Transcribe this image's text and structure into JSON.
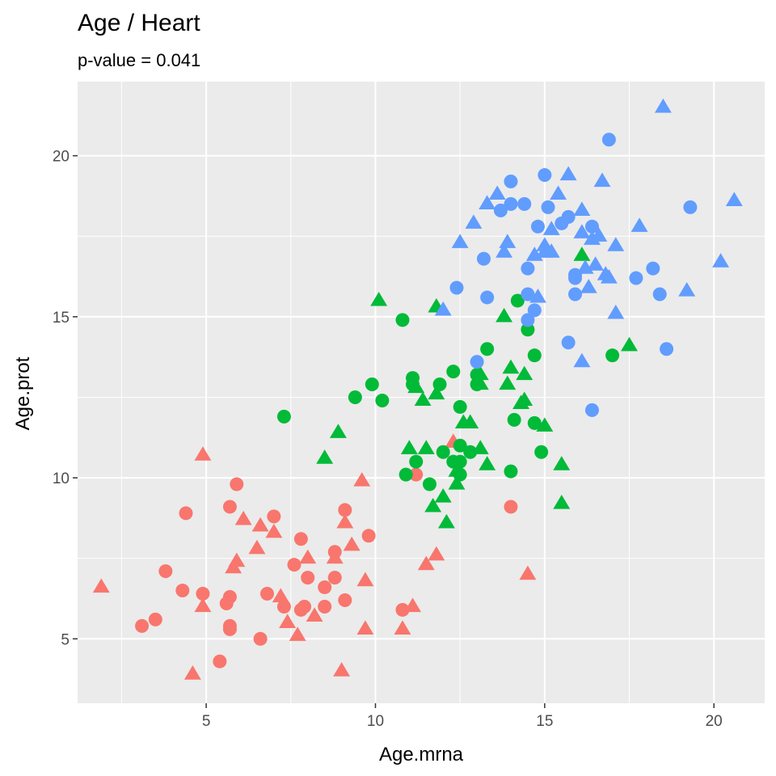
{
  "chart_data": {
    "type": "scatter",
    "title": "Age / Heart",
    "subtitle": "p-value = 0.041",
    "xlabel": "Age.mrna",
    "ylabel": "Age.prot",
    "xlim": [
      1.2,
      21.5
    ],
    "ylim": [
      3.0,
      22.3
    ],
    "x_ticks": [
      5,
      10,
      15,
      20
    ],
    "y_ticks": [
      5,
      10,
      15,
      20
    ],
    "grid": true,
    "legend": "none",
    "colors": {
      "red": "#F8766D",
      "green": "#00BA38",
      "blue": "#619CFF",
      "panel": "#EBEBEB",
      "grid": "#FFFFFF"
    },
    "series": [
      {
        "color": "red",
        "points": [
          [
            1.9,
            6.6,
            "triangle"
          ],
          [
            3.1,
            5.4,
            "circle"
          ],
          [
            3.5,
            5.6,
            "circle"
          ],
          [
            3.8,
            7.1,
            "circle"
          ],
          [
            4.3,
            6.5,
            "circle"
          ],
          [
            4.4,
            8.9,
            "circle"
          ],
          [
            4.6,
            3.9,
            "triangle"
          ],
          [
            4.9,
            10.7,
            "triangle"
          ],
          [
            4.9,
            6.4,
            "circle"
          ],
          [
            4.9,
            6.0,
            "triangle"
          ],
          [
            5.4,
            4.3,
            "circle"
          ],
          [
            5.6,
            6.1,
            "circle"
          ],
          [
            5.7,
            6.3,
            "circle"
          ],
          [
            5.7,
            5.4,
            "circle"
          ],
          [
            5.7,
            5.3,
            "circle"
          ],
          [
            5.7,
            9.1,
            "circle"
          ],
          [
            5.8,
            7.2,
            "triangle"
          ],
          [
            5.9,
            9.8,
            "circle"
          ],
          [
            5.9,
            7.4,
            "triangle"
          ],
          [
            6.1,
            8.7,
            "triangle"
          ],
          [
            6.5,
            7.8,
            "triangle"
          ],
          [
            6.6,
            5.0,
            "circle"
          ],
          [
            6.6,
            8.5,
            "triangle"
          ],
          [
            6.8,
            6.4,
            "circle"
          ],
          [
            7.0,
            8.3,
            "triangle"
          ],
          [
            7.0,
            8.8,
            "circle"
          ],
          [
            7.2,
            6.3,
            "triangle"
          ],
          [
            7.3,
            6.0,
            "circle"
          ],
          [
            7.4,
            5.5,
            "triangle"
          ],
          [
            7.6,
            7.3,
            "circle"
          ],
          [
            7.7,
            5.1,
            "triangle"
          ],
          [
            7.8,
            8.1,
            "circle"
          ],
          [
            7.8,
            5.9,
            "circle"
          ],
          [
            7.9,
            6.0,
            "circle"
          ],
          [
            8.0,
            7.5,
            "triangle"
          ],
          [
            8.0,
            6.9,
            "circle"
          ],
          [
            8.2,
            5.7,
            "triangle"
          ],
          [
            8.5,
            6.0,
            "circle"
          ],
          [
            8.5,
            6.6,
            "circle"
          ],
          [
            8.8,
            7.7,
            "circle"
          ],
          [
            8.8,
            7.5,
            "triangle"
          ],
          [
            8.8,
            6.9,
            "circle"
          ],
          [
            9.0,
            4.0,
            "triangle"
          ],
          [
            9.1,
            9.0,
            "circle"
          ],
          [
            9.1,
            8.6,
            "triangle"
          ],
          [
            9.1,
            6.2,
            "circle"
          ],
          [
            9.3,
            7.9,
            "triangle"
          ],
          [
            9.6,
            9.9,
            "triangle"
          ],
          [
            9.7,
            6.8,
            "triangle"
          ],
          [
            9.7,
            5.3,
            "triangle"
          ],
          [
            9.8,
            8.2,
            "circle"
          ],
          [
            10.8,
            5.9,
            "circle"
          ],
          [
            10.8,
            5.3,
            "triangle"
          ],
          [
            11.1,
            6.0,
            "triangle"
          ],
          [
            11.2,
            10.1,
            "circle"
          ],
          [
            11.5,
            7.3,
            "triangle"
          ],
          [
            11.8,
            7.6,
            "triangle"
          ],
          [
            12.3,
            11.1,
            "triangle"
          ],
          [
            14.0,
            9.1,
            "circle"
          ],
          [
            14.5,
            7.0,
            "triangle"
          ]
        ]
      },
      {
        "color": "green",
        "points": [
          [
            7.3,
            11.9,
            "circle"
          ],
          [
            8.5,
            10.6,
            "triangle"
          ],
          [
            8.9,
            11.4,
            "triangle"
          ],
          [
            9.4,
            12.5,
            "circle"
          ],
          [
            9.9,
            12.9,
            "circle"
          ],
          [
            10.1,
            15.5,
            "triangle"
          ],
          [
            10.2,
            12.4,
            "circle"
          ],
          [
            10.8,
            14.9,
            "circle"
          ],
          [
            10.9,
            10.1,
            "circle"
          ],
          [
            11.0,
            10.9,
            "triangle"
          ],
          [
            11.1,
            13.1,
            "circle"
          ],
          [
            11.1,
            12.9,
            "circle"
          ],
          [
            11.2,
            12.8,
            "triangle"
          ],
          [
            11.2,
            10.5,
            "circle"
          ],
          [
            11.4,
            12.4,
            "triangle"
          ],
          [
            11.5,
            10.9,
            "triangle"
          ],
          [
            11.6,
            9.8,
            "circle"
          ],
          [
            11.7,
            9.1,
            "triangle"
          ],
          [
            11.8,
            12.6,
            "triangle"
          ],
          [
            11.8,
            15.3,
            "triangle"
          ],
          [
            11.9,
            12.9,
            "circle"
          ],
          [
            12.0,
            10.8,
            "circle"
          ],
          [
            12.0,
            9.4,
            "triangle"
          ],
          [
            12.1,
            8.6,
            "triangle"
          ],
          [
            12.3,
            10.5,
            "circle"
          ],
          [
            12.3,
            13.3,
            "circle"
          ],
          [
            12.4,
            9.8,
            "triangle"
          ],
          [
            12.4,
            10.2,
            "triangle"
          ],
          [
            12.5,
            10.1,
            "circle"
          ],
          [
            12.5,
            10.5,
            "circle"
          ],
          [
            12.5,
            11.0,
            "circle"
          ],
          [
            12.5,
            12.2,
            "circle"
          ],
          [
            12.6,
            11.7,
            "triangle"
          ],
          [
            12.8,
            11.7,
            "triangle"
          ],
          [
            12.8,
            10.8,
            "circle"
          ],
          [
            13.0,
            12.9,
            "circle"
          ],
          [
            13.0,
            13.2,
            "circle"
          ],
          [
            13.1,
            10.9,
            "triangle"
          ],
          [
            13.1,
            13.2,
            "triangle"
          ],
          [
            13.1,
            12.9,
            "triangle"
          ],
          [
            13.3,
            10.4,
            "triangle"
          ],
          [
            13.3,
            14.0,
            "circle"
          ],
          [
            13.8,
            15.0,
            "triangle"
          ],
          [
            13.9,
            12.9,
            "triangle"
          ],
          [
            14.0,
            13.4,
            "triangle"
          ],
          [
            14.0,
            10.2,
            "circle"
          ],
          [
            14.1,
            11.8,
            "circle"
          ],
          [
            14.2,
            15.5,
            "circle"
          ],
          [
            14.3,
            12.3,
            "triangle"
          ],
          [
            14.4,
            13.2,
            "triangle"
          ],
          [
            14.4,
            12.4,
            "triangle"
          ],
          [
            14.5,
            14.6,
            "circle"
          ],
          [
            14.7,
            13.8,
            "circle"
          ],
          [
            14.7,
            11.7,
            "circle"
          ],
          [
            14.9,
            10.8,
            "circle"
          ],
          [
            15.0,
            11.6,
            "triangle"
          ],
          [
            15.5,
            9.2,
            "triangle"
          ],
          [
            15.5,
            10.4,
            "triangle"
          ],
          [
            16.1,
            16.9,
            "triangle"
          ],
          [
            17.0,
            13.8,
            "circle"
          ],
          [
            17.5,
            14.1,
            "triangle"
          ]
        ]
      },
      {
        "color": "blue",
        "points": [
          [
            12.0,
            15.2,
            "triangle"
          ],
          [
            12.4,
            15.9,
            "circle"
          ],
          [
            12.5,
            17.3,
            "triangle"
          ],
          [
            12.9,
            17.9,
            "triangle"
          ],
          [
            13.0,
            13.6,
            "circle"
          ],
          [
            13.2,
            16.8,
            "circle"
          ],
          [
            13.3,
            18.5,
            "triangle"
          ],
          [
            13.3,
            15.6,
            "circle"
          ],
          [
            13.6,
            18.8,
            "triangle"
          ],
          [
            13.7,
            18.3,
            "circle"
          ],
          [
            13.8,
            17.0,
            "triangle"
          ],
          [
            13.9,
            17.3,
            "triangle"
          ],
          [
            14.0,
            19.2,
            "circle"
          ],
          [
            14.0,
            18.5,
            "circle"
          ],
          [
            14.4,
            18.5,
            "circle"
          ],
          [
            14.5,
            16.5,
            "circle"
          ],
          [
            14.5,
            15.7,
            "circle"
          ],
          [
            14.5,
            14.9,
            "circle"
          ],
          [
            14.7,
            15.2,
            "circle"
          ],
          [
            14.7,
            16.9,
            "triangle"
          ],
          [
            14.8,
            17.8,
            "circle"
          ],
          [
            14.8,
            15.6,
            "triangle"
          ],
          [
            15.0,
            19.4,
            "circle"
          ],
          [
            15.0,
            17.2,
            "triangle"
          ],
          [
            15.0,
            17.0,
            "triangle"
          ],
          [
            15.1,
            18.4,
            "circle"
          ],
          [
            15.2,
            17.7,
            "triangle"
          ],
          [
            15.2,
            17.0,
            "triangle"
          ],
          [
            15.4,
            18.8,
            "triangle"
          ],
          [
            15.5,
            17.9,
            "circle"
          ],
          [
            15.7,
            18.1,
            "circle"
          ],
          [
            15.7,
            19.4,
            "triangle"
          ],
          [
            15.7,
            14.2,
            "circle"
          ],
          [
            15.9,
            16.3,
            "circle"
          ],
          [
            15.9,
            16.2,
            "circle"
          ],
          [
            15.9,
            15.7,
            "circle"
          ],
          [
            16.1,
            18.3,
            "triangle"
          ],
          [
            16.1,
            17.6,
            "triangle"
          ],
          [
            16.1,
            13.6,
            "triangle"
          ],
          [
            16.2,
            16.5,
            "triangle"
          ],
          [
            16.3,
            15.9,
            "triangle"
          ],
          [
            16.4,
            17.8,
            "circle"
          ],
          [
            16.4,
            17.4,
            "triangle"
          ],
          [
            16.4,
            12.1,
            "circle"
          ],
          [
            16.5,
            16.6,
            "triangle"
          ],
          [
            16.6,
            17.5,
            "triangle"
          ],
          [
            16.7,
            19.2,
            "triangle"
          ],
          [
            16.8,
            16.3,
            "triangle"
          ],
          [
            16.9,
            16.2,
            "triangle"
          ],
          [
            16.9,
            20.5,
            "circle"
          ],
          [
            17.1,
            17.2,
            "triangle"
          ],
          [
            17.1,
            15.1,
            "triangle"
          ],
          [
            17.7,
            16.2,
            "circle"
          ],
          [
            17.8,
            17.8,
            "triangle"
          ],
          [
            18.2,
            16.5,
            "circle"
          ],
          [
            18.4,
            15.7,
            "circle"
          ],
          [
            18.5,
            21.5,
            "triangle"
          ],
          [
            18.6,
            14.0,
            "circle"
          ],
          [
            19.2,
            15.8,
            "triangle"
          ],
          [
            19.3,
            18.4,
            "circle"
          ],
          [
            20.2,
            16.7,
            "triangle"
          ],
          [
            20.6,
            18.6,
            "triangle"
          ]
        ]
      }
    ]
  }
}
